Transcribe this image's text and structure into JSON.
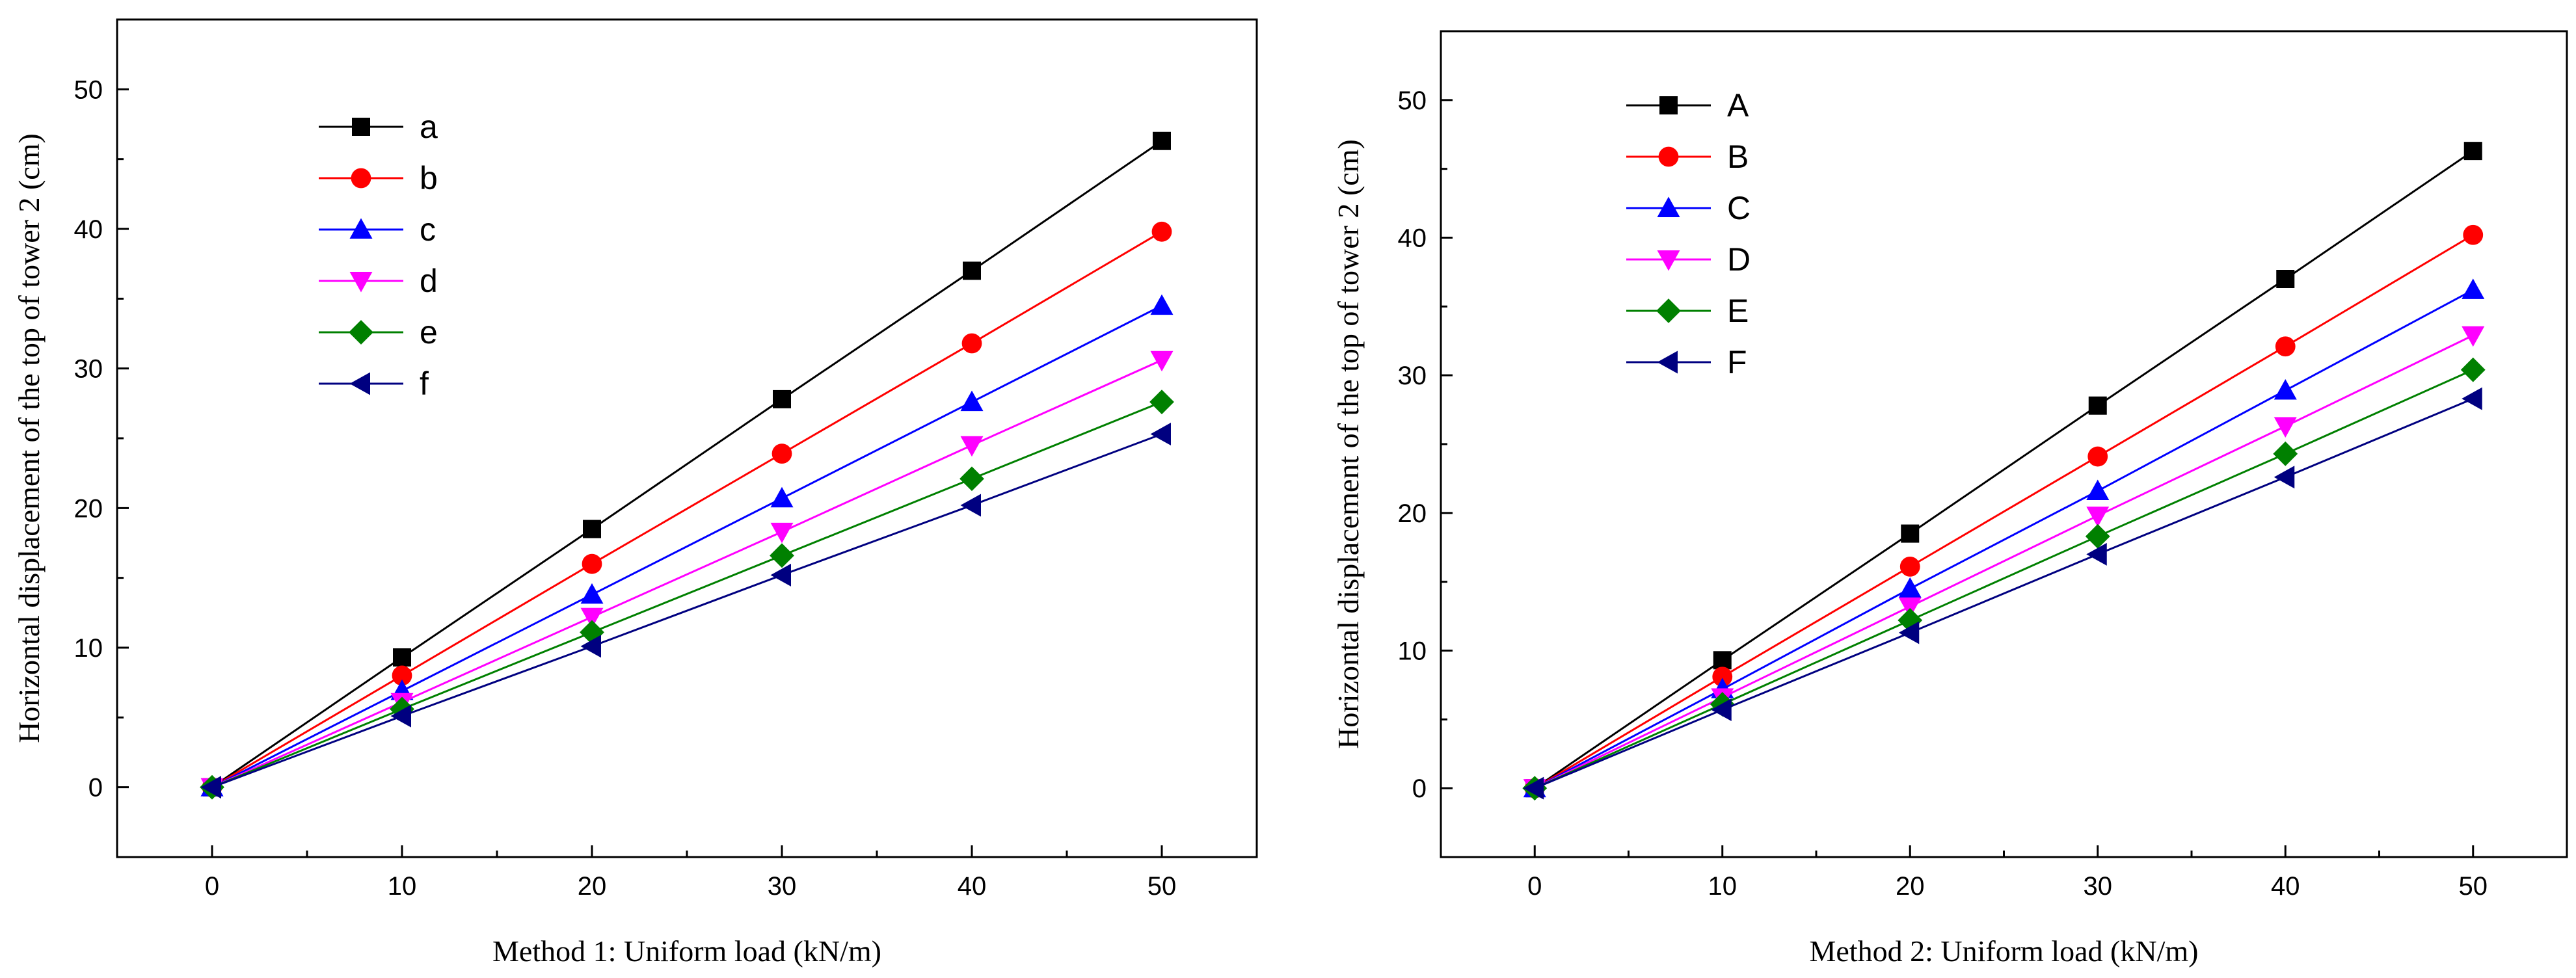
{
  "chart_data": [
    {
      "type": "line",
      "x": [
        0,
        10,
        20,
        30,
        40,
        50
      ],
      "xlabel": "Method 1: Uniform load (kN/m)",
      "ylabel": "Horizontal displacement of the top of tower 2 (cm)",
      "xlim": [
        -5,
        55
      ],
      "ylim": [
        -5,
        55
      ],
      "xticks": [
        0,
        10,
        20,
        30,
        40,
        50
      ],
      "yticks": [
        0,
        10,
        20,
        30,
        40,
        50
      ],
      "legend_position": "top-left",
      "series": [
        {
          "name": "a",
          "color": "#000000",
          "marker": "square",
          "values": [
            0,
            9.3,
            18.5,
            27.8,
            37.0,
            46.3
          ]
        },
        {
          "name": "b",
          "color": "#ff0000",
          "marker": "circle",
          "values": [
            0,
            8.0,
            16.0,
            23.9,
            31.8,
            39.8
          ]
        },
        {
          "name": "c",
          "color": "#0000ff",
          "marker": "triangle-up",
          "values": [
            0,
            6.9,
            13.8,
            20.7,
            27.6,
            34.5
          ]
        },
        {
          "name": "d",
          "color": "#ff00ff",
          "marker": "triangle-down",
          "values": [
            0,
            6.1,
            12.2,
            18.3,
            24.5,
            30.6
          ]
        },
        {
          "name": "e",
          "color": "#008000",
          "marker": "diamond",
          "values": [
            0,
            5.6,
            11.1,
            16.6,
            22.1,
            27.6
          ]
        },
        {
          "name": "f",
          "color": "#000080",
          "marker": "triangle-left",
          "values": [
            0,
            5.1,
            10.1,
            15.2,
            20.2,
            25.3
          ]
        }
      ]
    },
    {
      "type": "line",
      "x": [
        0,
        10,
        20,
        30,
        40,
        50
      ],
      "xlabel": "Method 2: Uniform load (kN/m)",
      "ylabel": "Horizontal displacement of the top of tower 2 (cm)",
      "xlim": [
        -5,
        55
      ],
      "ylim": [
        -5,
        55
      ],
      "xticks": [
        0,
        10,
        20,
        30,
        40,
        50
      ],
      "yticks": [
        0,
        10,
        20,
        30,
        40,
        50
      ],
      "legend_position": "top-left",
      "series": [
        {
          "name": "A",
          "color": "#000000",
          "marker": "square",
          "values": [
            0,
            9.3,
            18.5,
            27.8,
            37.0,
            46.3
          ]
        },
        {
          "name": "B",
          "color": "#ff0000",
          "marker": "circle",
          "values": [
            0,
            8.1,
            16.1,
            24.1,
            32.1,
            40.2
          ]
        },
        {
          "name": "C",
          "color": "#0000ff",
          "marker": "triangle-up",
          "values": [
            0,
            7.2,
            14.5,
            21.6,
            28.9,
            36.2
          ]
        },
        {
          "name": "D",
          "color": "#ff00ff",
          "marker": "triangle-down",
          "values": [
            0,
            6.6,
            13.2,
            19.8,
            26.3,
            32.9
          ]
        },
        {
          "name": "E",
          "color": "#008000",
          "marker": "diamond",
          "values": [
            0,
            6.1,
            12.2,
            18.3,
            24.3,
            30.4
          ]
        },
        {
          "name": "F",
          "color": "#000080",
          "marker": "triangle-left",
          "values": [
            0,
            5.7,
            11.3,
            17.0,
            22.6,
            28.3
          ]
        }
      ]
    }
  ]
}
